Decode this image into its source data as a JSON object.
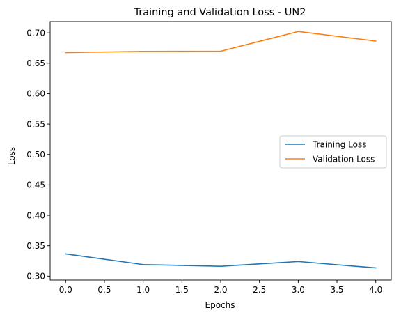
{
  "chart_data": {
    "type": "line",
    "title": "Training and Validation Loss - UN2",
    "xlabel": "Epochs",
    "ylabel": "Loss",
    "x": [
      0,
      1,
      2,
      3,
      4
    ],
    "xlim": [
      -0.2,
      4.2
    ],
    "ylim": [
      0.2935,
      0.7185
    ],
    "xticks": [
      0.0,
      0.5,
      1.0,
      1.5,
      2.0,
      2.5,
      3.0,
      3.5,
      4.0
    ],
    "xtick_labels": [
      "0.0",
      "0.5",
      "1.0",
      "1.5",
      "2.0",
      "2.5",
      "3.0",
      "3.5",
      "4.0"
    ],
    "yticks": [
      0.3,
      0.35,
      0.4,
      0.45,
      0.5,
      0.55,
      0.6,
      0.65,
      0.7
    ],
    "ytick_labels": [
      "0.30",
      "0.35",
      "0.40",
      "0.45",
      "0.50",
      "0.55",
      "0.60",
      "0.65",
      "0.70"
    ],
    "grid": false,
    "legend_position": "center-right",
    "series": [
      {
        "name": "Training Loss",
        "color": "#1f77b4",
        "values": [
          0.3365,
          0.319,
          0.3162,
          0.324,
          0.3135
        ]
      },
      {
        "name": "Validation Loss",
        "color": "#ff7f0e",
        "values": [
          0.6675,
          0.6695,
          0.6698,
          0.7022,
          0.6865
        ]
      }
    ]
  }
}
